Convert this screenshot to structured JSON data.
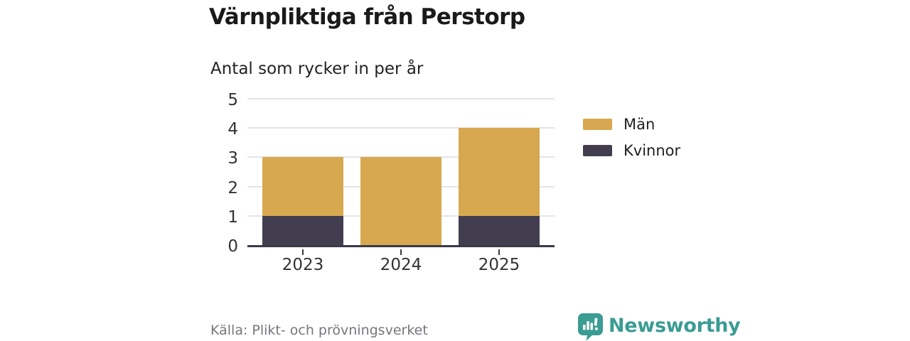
{
  "header": {
    "title": "Värnpliktiga från Perstorp",
    "subtitle": "Antal som rycker in per år"
  },
  "chart_data": {
    "type": "bar",
    "stacked": true,
    "title": "Värnpliktiga från Perstorp",
    "subtitle": "Antal som rycker in per år",
    "categories": [
      "2023",
      "2024",
      "2025"
    ],
    "series": [
      {
        "name": "Män",
        "color": "#d8a850",
        "values": [
          2,
          3,
          3
        ]
      },
      {
        "name": "Kvinnor",
        "color": "#423e50",
        "values": [
          1,
          0,
          1
        ]
      }
    ],
    "totals": [
      3,
      3,
      4
    ],
    "xlabel": "",
    "ylabel": "",
    "ylim": [
      0,
      5
    ],
    "yticks": [
      0,
      1,
      2,
      3,
      4,
      5
    ],
    "grid": true,
    "legend_position": "right"
  },
  "footer": {
    "source": "Källa: Plikt- och prövningsverket",
    "brand": "Newsworthy"
  },
  "colors": {
    "men": "#d8a850",
    "women": "#423e50",
    "axis": "#3b3948",
    "gridline": "#e4e4e7",
    "title_text": "#1a1a1a",
    "tick_text": "#333333",
    "source_text": "#76767e",
    "brand_teal": "#3a9c93",
    "background": "#ffffff"
  },
  "icons": {
    "newsworthy_logo": "bar-chart-speech-bubble-icon"
  }
}
